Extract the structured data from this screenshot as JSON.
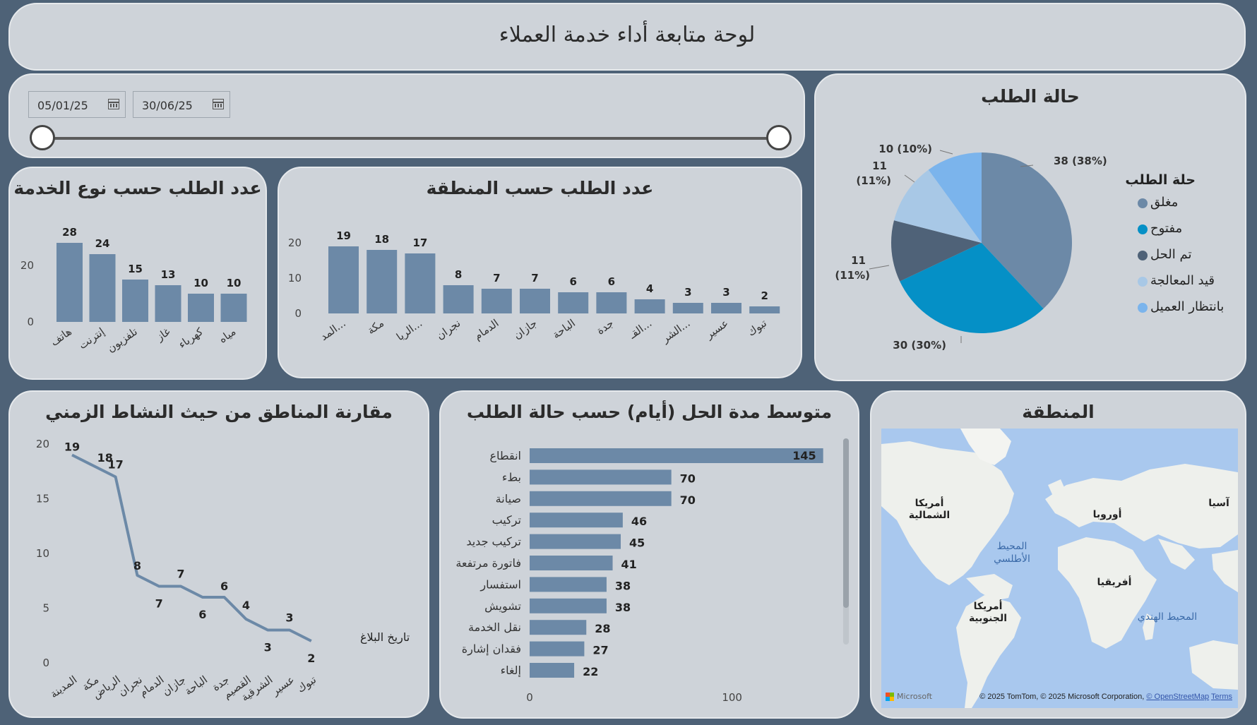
{
  "header": {
    "title": "لوحة متابعة أداء خدمة العملاء"
  },
  "filter": {
    "start_date": "05/01/25",
    "end_date": "30/06/25"
  },
  "colors": {
    "bar": "#6c89a7",
    "closed": "#6c89a7",
    "open": "#0590c6",
    "resolved": "#4f6278",
    "processing": "#a8c8e6",
    "waiting": "#7bb4ec"
  },
  "service_chart": {
    "title": "عدد الطلب حسب نوع الخدمة"
  },
  "region_chart": {
    "title": "عدد الطلب حسب المنطقة"
  },
  "status_chart": {
    "title": "حالة الطلب",
    "legend_title": "حلة الطلب"
  },
  "line_chart": {
    "title": "مقارنة المناطق من حيث النشاط الزمني",
    "legend": "تاريخ البلاغ"
  },
  "avg_chart": {
    "title": "متوسط مدة الحل (أيام) حسب حالة الطلب"
  },
  "map": {
    "title": "المنطقة",
    "labels": {
      "north_america": "أمريكا الشمالية",
      "south_america": "أمريكا الجنوبية",
      "europe": "أوروبا",
      "africa": "أفريقيا",
      "asia": "آسيا",
      "atlantic": "المحيط الأطلسي",
      "indian": "المحيط الهندي"
    },
    "logo_text": "Microsoft",
    "attribution": "© 2025 TomTom, © 2025 Microsoft Corporation, ",
    "osm_link": "© OpenStreetMap",
    "terms_link": "Terms"
  },
  "chart_data": [
    {
      "id": "service",
      "type": "bar",
      "title": "عدد الطلب حسب نوع الخدمة",
      "categories": [
        "هاتف",
        "إنترنت",
        "تلفزيون",
        "غاز",
        "كهرباء",
        "مياه"
      ],
      "values": [
        28,
        24,
        15,
        13,
        10,
        10
      ],
      "yticks": [
        0,
        20
      ],
      "ylim": [
        0,
        30
      ]
    },
    {
      "id": "region",
      "type": "bar",
      "title": "عدد الطلب حسب المنطقة",
      "categories": [
        "المد...",
        "مكة",
        "الريا...",
        "نجران",
        "الدمام",
        "جازان",
        "الباحة",
        "جدة",
        "القـ...",
        "الشر...",
        "عسير",
        "تبوك"
      ],
      "values": [
        19,
        18,
        17,
        8,
        7,
        7,
        6,
        6,
        4,
        3,
        3,
        2
      ],
      "yticks": [
        0,
        10,
        20
      ],
      "ylim": [
        0,
        22
      ]
    },
    {
      "id": "status",
      "type": "pie",
      "title": "حالة الطلب",
      "legend_title": "حلة الطلب",
      "legend_position": "right",
      "labels": [
        "مغلق",
        "مفتوح",
        "تم الحل",
        "قيد المعالجة",
        "بانتظار العميل"
      ],
      "values": [
        38,
        30,
        11,
        11,
        10
      ],
      "data_labels": [
        "38 (38%)",
        "30 (30%)",
        "11",
        "11",
        "10 (10%)"
      ],
      "data_labels_pct": [
        "",
        "",
        "(11%)",
        "(11%)",
        ""
      ]
    },
    {
      "id": "timeline",
      "type": "line",
      "title": "مقارنة المناطق من حيث النشاط الزمني",
      "legend": "تاريخ البلاغ",
      "categories": [
        "المدينة",
        "مكة",
        "الرياض",
        "نجران",
        "الدمام",
        "جازان",
        "الباحة",
        "جدة",
        "القصيم",
        "الشرقية",
        "عسير",
        "تبوك"
      ],
      "values": [
        19,
        18,
        17,
        8,
        7,
        7,
        6,
        6,
        4,
        3,
        3,
        2
      ],
      "yticks": [
        0,
        5,
        10,
        15,
        20
      ],
      "ylim": [
        0,
        20
      ]
    },
    {
      "id": "avg_days",
      "type": "bar",
      "orientation": "horizontal",
      "title": "متوسط مدة الحل (أيام) حسب حالة الطلب",
      "categories": [
        "انقطاع",
        "بطء",
        "صيانة",
        "تركيب",
        "تركيب جديد",
        "فاتورة مرتفعة",
        "استفسار",
        "تشويش",
        "نقل الخدمة",
        "فقدان إشارة",
        "إلغاء"
      ],
      "values": [
        145,
        70,
        70,
        46,
        45,
        41,
        38,
        38,
        28,
        27,
        22
      ],
      "xticks": [
        0,
        100
      ]
    }
  ]
}
